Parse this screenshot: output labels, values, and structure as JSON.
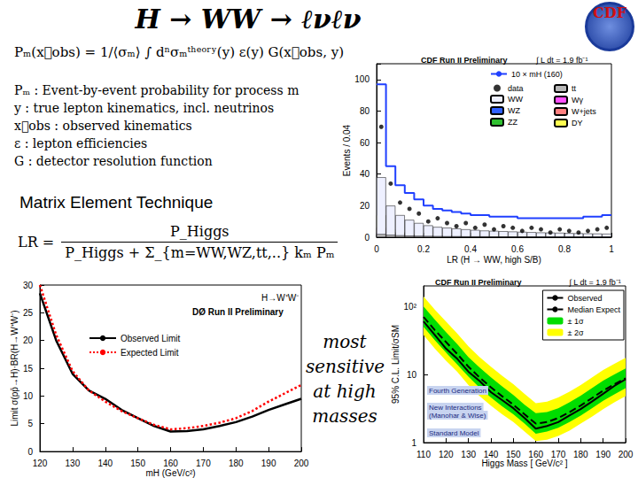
{
  "slide": {
    "title": "H → WW → ℓνℓν",
    "logo": "CDF",
    "formula": "Pₘ(x⃗obs) = 1/⟨σₘ⟩ ∫ dⁿσₘᵗʰᵉᵒʳʸ(y) ε(y) G(x⃗obs, y)",
    "definitions": [
      "Pₘ : Event-by-event probability for process m",
      "y : true lepton kinematics, incl. neutrinos",
      "x⃗obs : observed kinematics",
      "ε : lepton efficiencies",
      "G : detector resolution function"
    ],
    "method": "Matrix Element Technique",
    "lr_formula": {
      "lhs": "LR =",
      "numerator": "P_Higgs",
      "denominator": "P_Higgs + Σ_{m=WW,WZ,tt,..} kₘ Pₘ"
    },
    "note": "most sensitive at high masses"
  },
  "chart_data": [
    {
      "type": "histogram",
      "title": "CDF Run II Preliminary",
      "subtitle": "∫ L dt = 1.9 fb⁻¹",
      "x_label": "LR (H → WW, high S/B)",
      "y_label": "Events / 0.04",
      "bins": [
        0,
        0.04,
        0.08,
        0.12,
        0.16,
        0.2,
        0.24,
        0.28,
        0.32,
        0.36,
        0.4,
        0.44,
        0.48,
        0.52,
        0.56,
        0.6,
        0.64,
        0.68,
        0.72,
        0.76,
        0.8,
        0.84,
        0.88,
        0.92,
        0.96,
        1
      ],
      "xlim": [
        0,
        1
      ],
      "xticks": [
        0,
        0.2,
        0.4,
        0.6,
        0.8,
        1
      ],
      "ylim": [
        0,
        110
      ],
      "yticks": [
        0,
        20,
        40,
        60,
        80,
        100
      ],
      "stacked": true,
      "legend": "upper right",
      "grid": false,
      "series": [
        {
          "name": "10 × mH (160)",
          "type": "line",
          "color": "#2040ff",
          "line_style": "solid",
          "values": [
            97,
            45,
            33,
            28,
            24,
            20,
            18,
            17,
            16,
            15,
            14,
            14,
            13,
            13,
            13,
            12,
            12,
            12,
            12,
            12,
            12,
            12,
            13,
            13,
            14
          ]
        },
        {
          "name": "data",
          "type": "scatter",
          "color": "#000000",
          "marker": "circle",
          "values": [
            70,
            34,
            22,
            18,
            15,
            10,
            12,
            9,
            7,
            9,
            6,
            8,
            5,
            7,
            6,
            4,
            6,
            5,
            3,
            5,
            4,
            3,
            4,
            5,
            6
          ]
        },
        {
          "name": "tt",
          "type": "bar",
          "color": "#b8b8b8",
          "values": [
            2.0,
            1.5,
            1.2,
            1.0,
            0.9,
            0.8,
            0.7,
            0.6,
            0.6,
            0.5,
            0.5,
            0.5,
            0.4,
            0.4,
            0.4,
            0.3,
            0.3,
            0.3,
            0.3,
            0.2,
            0.2,
            0.2,
            0.2,
            0.2,
            0.2
          ]
        },
        {
          "name": "WW",
          "type": "bar",
          "color": "#eef0ff",
          "values": [
            38,
            20,
            14,
            11,
            9,
            7.5,
            6.5,
            6,
            5.5,
            5,
            4.6,
            4.2,
            4,
            3.8,
            3.6,
            3.4,
            3.2,
            3,
            2.9,
            2.8,
            2.6,
            2.5,
            2.4,
            2.3,
            2.2
          ]
        },
        {
          "name": "Wγ",
          "type": "bar",
          "color": "#ff50ff",
          "values": [
            3.0,
            1.5,
            1.0,
            0.8,
            0.6,
            0.5,
            0.4,
            0.4,
            0.3,
            0.3,
            0.3,
            0.2,
            0.2,
            0.2,
            0.2,
            0.2,
            0.1,
            0.1,
            0.1,
            0.1,
            0.1,
            0.1,
            0.1,
            0.1,
            0.1
          ]
        },
        {
          "name": "WZ",
          "type": "bar",
          "color": "#3060ff",
          "values": [
            1.8,
            1.0,
            0.7,
            0.6,
            0.5,
            0.4,
            0.4,
            0.3,
            0.3,
            0.3,
            0.2,
            0.2,
            0.2,
            0.2,
            0.2,
            0.2,
            0.2,
            0.1,
            0.1,
            0.1,
            0.1,
            0.1,
            0.1,
            0.1,
            0.1
          ]
        },
        {
          "name": "W+jets",
          "type": "bar",
          "color": "#ff8080",
          "values": [
            6,
            3,
            2,
            1.6,
            1.3,
            1.1,
            1,
            0.9,
            0.8,
            0.7,
            0.6,
            0.6,
            0.5,
            0.5,
            0.5,
            0.4,
            0.4,
            0.4,
            0.3,
            0.3,
            0.3,
            0.3,
            0.3,
            0.3,
            0.2
          ]
        },
        {
          "name": "ZZ",
          "type": "bar",
          "color": "#30c030",
          "values": [
            1.2,
            0.7,
            0.5,
            0.4,
            0.4,
            0.3,
            0.3,
            0.3,
            0.2,
            0.2,
            0.2,
            0.2,
            0.2,
            0.2,
            0.1,
            0.1,
            0.1,
            0.1,
            0.1,
            0.1,
            0.1,
            0.1,
            0.1,
            0.1,
            0.1
          ]
        },
        {
          "name": "DY",
          "type": "bar",
          "color": "#ffff50",
          "values": [
            14,
            5,
            3,
            2,
            1.5,
            1.2,
            1,
            0.8,
            0.7,
            0.6,
            0.5,
            0.5,
            0.4,
            0.4,
            0.3,
            0.3,
            0.3,
            0.3,
            0.2,
            0.2,
            0.2,
            0.2,
            0.2,
            0.2,
            0.2
          ]
        }
      ]
    },
    {
      "type": "line",
      "title": "DØ Run II Preliminary",
      "subtitle": "H→W⁺W⁻",
      "x_label": "mH (GeV/c²)",
      "y_label": "Limit σ(pp̄→H)·BR(H→W⁺W⁻)",
      "x": [
        120,
        125,
        130,
        135,
        140,
        145,
        150,
        155,
        160,
        165,
        170,
        175,
        180,
        185,
        190,
        195,
        200
      ],
      "xlim": [
        120,
        200
      ],
      "xticks": [
        120,
        130,
        140,
        150,
        160,
        170,
        180,
        190,
        200
      ],
      "ylim": [
        0,
        30
      ],
      "yticks": [
        0,
        5,
        10,
        15,
        20,
        25,
        30
      ],
      "legend": "upper left",
      "grid": false,
      "series": [
        {
          "name": "Observed Limit",
          "color": "#000000",
          "line_style": "solid",
          "values": [
            28.5,
            20,
            14,
            11,
            9.5,
            7.5,
            6,
            4.6,
            3.6,
            3.7,
            4,
            4.6,
            5.3,
            6.3,
            7.5,
            8.5,
            9.5
          ]
        },
        {
          "name": "Expected Limit",
          "color": "#ff0000",
          "line_style": "dotted",
          "values": [
            30,
            21,
            14.5,
            11,
            9,
            7.3,
            6,
            4.8,
            4,
            4.2,
            4.6,
            5.2,
            6,
            7.3,
            9,
            10.5,
            12
          ]
        }
      ]
    },
    {
      "type": "line",
      "title": "CDF Run II Preliminary",
      "subtitle": "∫ L dt = 1.9 fb⁻¹",
      "x_label": "Higgs Mass [ GeV/c² ]",
      "y_label": "95% C.L. Limit/σSM",
      "annotations": [
        "Fourth Generation",
        "New Interactions",
        "(Manohar & Wise)",
        "Standard Model"
      ],
      "x": [
        110,
        115,
        120,
        125,
        130,
        135,
        140,
        145,
        150,
        155,
        160,
        165,
        170,
        175,
        180,
        185,
        190,
        195,
        200
      ],
      "xlim": [
        110,
        200
      ],
      "xticks": [
        110,
        120,
        130,
        140,
        150,
        160,
        170,
        180,
        190,
        200
      ],
      "log": "y",
      "ylim": [
        1,
        200
      ],
      "yticks": [
        1,
        10,
        {
          "value": 100,
          "label": "10²"
        }
      ],
      "legend": "upper right",
      "grid": false,
      "series": [
        {
          "name": "Observed",
          "type": "line",
          "color": "#000000",
          "line_style": "solid",
          "values": [
            60,
            38,
            24,
            17,
            11,
            8,
            5.5,
            4.2,
            3.2,
            2.3,
            1.6,
            1.75,
            2.0,
            2.5,
            3.1,
            4.0,
            5.2,
            6.8,
            8.5
          ]
        },
        {
          "name": "Median Expect",
          "type": "line",
          "color": "#000000",
          "line_style": "dashed",
          "values": [
            70,
            45,
            30,
            20,
            13,
            9,
            6.5,
            4.8,
            3.6,
            2.6,
            1.9,
            2.0,
            2.3,
            2.8,
            3.5,
            4.5,
            5.8,
            7.2,
            8.8
          ]
        },
        {
          "name": "± 1σ",
          "type": "band",
          "color": "#00dd00",
          "lower": [
            50,
            32,
            21,
            14,
            9.3,
            6.4,
            4.6,
            3.4,
            2.6,
            1.9,
            1.35,
            1.45,
            1.65,
            2.0,
            2.5,
            3.2,
            4.1,
            5.1,
            6.3
          ],
          "upper": [
            100,
            64,
            42,
            28,
            18,
            12.6,
            9.1,
            6.7,
            5.0,
            3.6,
            2.7,
            2.8,
            3.2,
            3.9,
            4.9,
            6.3,
            8.1,
            10,
            12.3
          ]
        },
        {
          "name": "± 2σ",
          "type": "band",
          "color": "#ffff00",
          "lower": [
            38,
            24,
            16,
            11,
            7,
            4.8,
            3.5,
            2.6,
            2.0,
            1.45,
            1.05,
            1.1,
            1.25,
            1.5,
            1.9,
            2.4,
            3.1,
            3.9,
            4.8
          ],
          "upper": [
            140,
            90,
            60,
            40,
            26,
            18,
            13,
            9.6,
            7.2,
            5.2,
            3.8,
            4.0,
            4.6,
            5.6,
            7.0,
            9.0,
            11.6,
            14.4,
            17.6
          ]
        }
      ]
    }
  ]
}
